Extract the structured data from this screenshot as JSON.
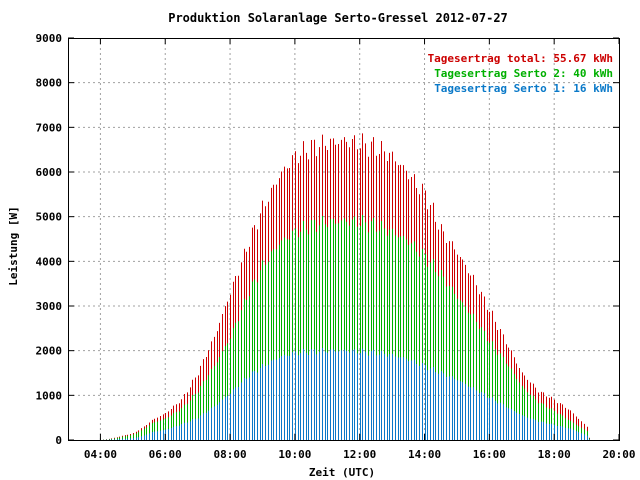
{
  "chart_data": {
    "type": "bar",
    "title": "Produktion Solaranlage Serto-Gressel 2012-07-27",
    "xlabel": "Zeit (UTC)",
    "ylabel": "Leistung [W]",
    "ylim": [
      0,
      9000
    ],
    "xlim": [
      3,
      20
    ],
    "x_ticks": [
      "04:00",
      "06:00",
      "08:00",
      "10:00",
      "12:00",
      "14:00",
      "16:00",
      "18:00",
      "20:00"
    ],
    "x_tick_values": [
      4,
      6,
      8,
      10,
      12,
      14,
      16,
      18,
      20
    ],
    "y_ticks": [
      0,
      1000,
      2000,
      3000,
      4000,
      5000,
      6000,
      7000,
      8000,
      9000
    ],
    "grid": true,
    "legend_position": "top-right",
    "legend": [
      {
        "text": "Tagesertrag total: 55.67 kWh",
        "color": "#cc0000"
      },
      {
        "text": "Tagesertrag Serto 2: 40 kWh",
        "color": "#00b000"
      },
      {
        "text": "Tagesertrag Serto 1: 16 kWh",
        "color": "#0a79c8"
      }
    ],
    "bar_interval_minutes": 5,
    "total_profile": [
      [
        4.0,
        0
      ],
      [
        4.3,
        30
      ],
      [
        4.6,
        80
      ],
      [
        5.0,
        150
      ],
      [
        5.3,
        280
      ],
      [
        5.6,
        450
      ],
      [
        6.0,
        600
      ],
      [
        6.5,
        900
      ],
      [
        7.0,
        1500
      ],
      [
        7.5,
        2300
      ],
      [
        8.0,
        3300
      ],
      [
        8.5,
        4300
      ],
      [
        9.0,
        5200
      ],
      [
        9.5,
        5900
      ],
      [
        10.0,
        6350
      ],
      [
        10.5,
        6550
      ],
      [
        11.0,
        6650
      ],
      [
        11.5,
        6700
      ],
      [
        12.0,
        6650
      ],
      [
        12.5,
        6550
      ],
      [
        13.0,
        6350
      ],
      [
        13.5,
        5950
      ],
      [
        14.0,
        5500
      ],
      [
        14.2,
        5200
      ],
      [
        14.5,
        4700
      ],
      [
        15.0,
        4200
      ],
      [
        15.5,
        3600
      ],
      [
        16.0,
        2900
      ],
      [
        16.5,
        2200
      ],
      [
        17.0,
        1500
      ],
      [
        17.5,
        1100
      ],
      [
        18.0,
        900
      ],
      [
        18.5,
        650
      ],
      [
        19.0,
        300
      ],
      [
        19.1,
        0
      ]
    ],
    "serto2_profile": [
      [
        4.0,
        0
      ],
      [
        4.3,
        20
      ],
      [
        4.6,
        60
      ],
      [
        5.0,
        120
      ],
      [
        5.3,
        230
      ],
      [
        5.6,
        380
      ],
      [
        6.0,
        480
      ],
      [
        6.5,
        700
      ],
      [
        7.0,
        1100
      ],
      [
        7.5,
        1650
      ],
      [
        8.0,
        2300
      ],
      [
        8.5,
        3200
      ],
      [
        9.0,
        3900
      ],
      [
        9.5,
        4400
      ],
      [
        10.0,
        4650
      ],
      [
        10.5,
        4800
      ],
      [
        11.0,
        4880
      ],
      [
        11.5,
        4900
      ],
      [
        12.0,
        4880
      ],
      [
        12.5,
        4800
      ],
      [
        13.0,
        4650
      ],
      [
        13.5,
        4450
      ],
      [
        14.0,
        4100
      ],
      [
        14.5,
        3700
      ],
      [
        15.0,
        3200
      ],
      [
        15.5,
        2750
      ],
      [
        16.0,
        2200
      ],
      [
        16.5,
        1750
      ],
      [
        17.0,
        1200
      ],
      [
        17.5,
        850
      ],
      [
        18.0,
        650
      ],
      [
        18.5,
        420
      ],
      [
        19.0,
        200
      ],
      [
        19.1,
        0
      ]
    ],
    "serto1_profile": [
      [
        4.0,
        0
      ],
      [
        4.3,
        10
      ],
      [
        4.6,
        20
      ],
      [
        5.0,
        40
      ],
      [
        5.3,
        90
      ],
      [
        5.6,
        180
      ],
      [
        6.0,
        230
      ],
      [
        6.5,
        350
      ],
      [
        7.0,
        500
      ],
      [
        7.5,
        750
      ],
      [
        8.0,
        1050
      ],
      [
        8.5,
        1400
      ],
      [
        9.0,
        1650
      ],
      [
        9.5,
        1850
      ],
      [
        10.0,
        1950
      ],
      [
        10.5,
        1980
      ],
      [
        11.0,
        2000
      ],
      [
        11.5,
        2000
      ],
      [
        12.0,
        1980
      ],
      [
        12.5,
        1950
      ],
      [
        13.0,
        1900
      ],
      [
        13.5,
        1800
      ],
      [
        14.0,
        1650
      ],
      [
        14.5,
        1500
      ],
      [
        15.0,
        1350
      ],
      [
        15.5,
        1150
      ],
      [
        16.0,
        950
      ],
      [
        16.5,
        750
      ],
      [
        17.0,
        550
      ],
      [
        17.5,
        420
      ],
      [
        18.0,
        340
      ],
      [
        18.5,
        250
      ],
      [
        19.0,
        100
      ],
      [
        19.1,
        0
      ]
    ],
    "plot_style": {
      "background": "#ffffff",
      "grid_color": "#a0a0a0",
      "frame_color": "#000000"
    }
  }
}
